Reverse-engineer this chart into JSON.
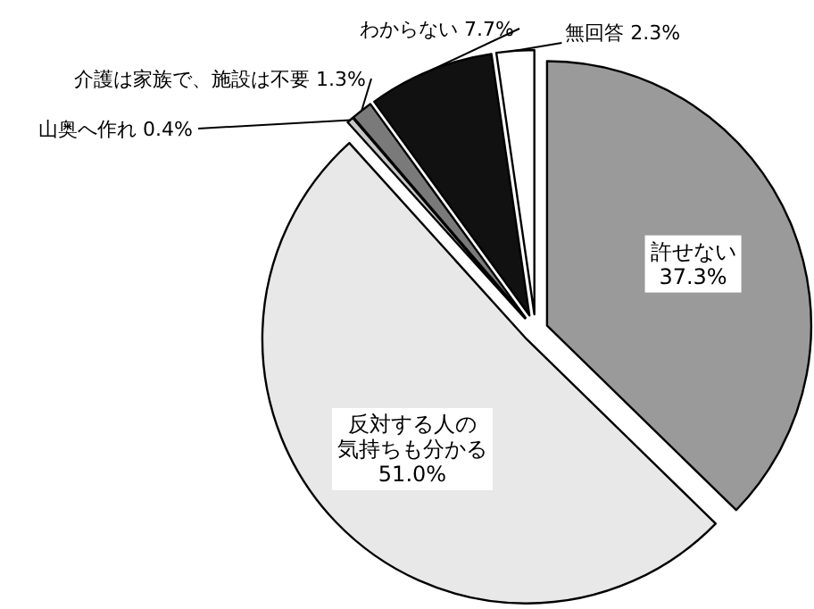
{
  "chart_data": {
    "type": "pie",
    "categories": [
      "許せない",
      "反対する人の気持ちも分かる",
      "山奥へ作れ",
      "介護は家族で、施設は不要",
      "わからない",
      "無回答"
    ],
    "values": [
      37.3,
      51.0,
      0.4,
      1.3,
      7.7,
      2.3
    ],
    "value_labels": [
      "37.3%",
      "51.0%",
      "0.4%",
      "1.3%",
      "7.7%",
      "2.3%"
    ],
    "colors": [
      "#9a9a9a",
      "#e8e8e8",
      "#c8c8c8",
      "#7a7a7a",
      "#111111",
      "#ffffff"
    ]
  }
}
